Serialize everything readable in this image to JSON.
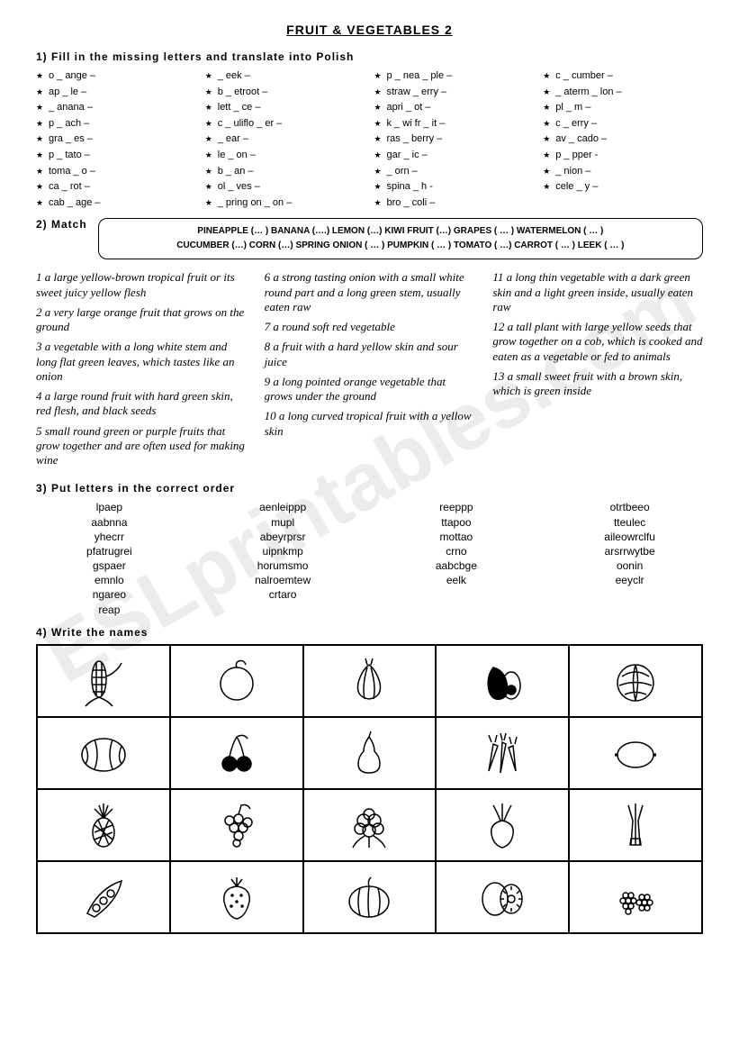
{
  "title": "FRUIT & VEGETABLES  2",
  "watermark": "ESLprintables.com",
  "ex1": {
    "heading": "1) Fill  in  the   missing   letters   and   translate   into  Polish",
    "col1": [
      "o _ ange –",
      "ap _ le –",
      "_ anana –",
      "p _ ach –",
      "gra _ es –",
      "p _ tato –",
      "toma _ o –",
      "ca _ rot –",
      "cab _ age –"
    ],
    "col2": [
      "_ eek –",
      "b _ etroot –",
      "lett _ ce –",
      "c _ uliflo _ er –",
      "_ ear –",
      "le _ on –",
      "b _ an –",
      "ol _ ves –",
      "_ pring  on _ on –"
    ],
    "col3": [
      "p _ nea _ ple –",
      "straw _ erry –",
      "apri _ ot –",
      "k _ wi  fr _ it –",
      "ras _ berry –",
      "gar _ ic –",
      "_ orn –",
      "spina _ h -",
      "bro _ coli –"
    ],
    "col4": [
      "c _ cumber –",
      "_ aterm _ lon –",
      "pl _ m –",
      "c _ erry –",
      "av _ cado –",
      "p _ pper -",
      "_ nion –",
      "cele _ y –"
    ]
  },
  "ex2": {
    "heading": "2) Match",
    "box_line1": "PINEAPPLE (… )   BANANA (….)   LEMON (…)   KIWI FRUIT (…)   GRAPES ( … ) WATERMELON ( … )",
    "box_line2": "CUCUMBER (…) CORN (…)   SPRING ONION ( … )   PUMPKIN ( … ) TOMATO ( …) CARROT ( … ) LEEK ( … )",
    "defs_col1": [
      "1 a large yellow-brown tropical fruit or its sweet juicy yellow flesh",
      "2 a very large orange fruit that grows on the ground",
      "3 a vegetable with a long white stem and long flat green leaves, which tastes like an onion",
      "4 a large round fruit with hard green skin, red flesh, and black seeds",
      "5 small round green or purple fruits that grow together and are often used for making wine"
    ],
    "defs_col2": [
      "6 a strong tasting onion with a small white round part and a long green stem, usually eaten raw",
      "7 a round soft red  vegetable",
      "8 a fruit with a hard yellow skin and sour juice",
      "9 a long pointed orange vegetable that grows under the ground",
      "10 a long curved tropical fruit with a yellow skin"
    ],
    "defs_col3": [
      "11 a long thin  vegetable with a dark green skin and a light green inside, usually eaten raw",
      "12 a tall plant with large yellow seeds that grow together on a cob, which is cooked and eaten as a vegetable or fed to animals",
      "13 a small sweet fruit with a brown skin, which is green inside"
    ]
  },
  "ex3": {
    "heading": "3) Put  letters  in  the  correct  order",
    "col1": [
      "lpaep",
      "aabnna",
      "yhecrr",
      "pfatrugrei",
      "gspaer",
      "emnlo",
      "ngareo",
      "reap"
    ],
    "col2": [
      "aenleippp",
      "mupl",
      "abeyrprsr",
      "uipnkmp",
      "horumsmo",
      "nalroemtew",
      "crtaro"
    ],
    "col3": [
      "reeppp",
      "ttapoo",
      "mottao",
      "crno",
      "aabcbge",
      "eelk"
    ],
    "col4": [
      "otrtbeeo",
      "tteulec",
      "aileowrclfu",
      "arsrrwytbe",
      "oonin",
      "eeyclr"
    ]
  },
  "ex4": {
    "heading": "4) Write the names",
    "items": [
      {
        "name": "corn-icon"
      },
      {
        "name": "orange-icon"
      },
      {
        "name": "garlic-icon"
      },
      {
        "name": "avocado-icon"
      },
      {
        "name": "cabbage-icon"
      },
      {
        "name": "watermelon-icon"
      },
      {
        "name": "cherries-icon"
      },
      {
        "name": "pear-icon"
      },
      {
        "name": "carrots-icon"
      },
      {
        "name": "lemon-icon"
      },
      {
        "name": "pineapple-icon"
      },
      {
        "name": "grapes-icon"
      },
      {
        "name": "cauliflower-icon"
      },
      {
        "name": "beetroot-icon"
      },
      {
        "name": "leek-icon"
      },
      {
        "name": "peas-icon"
      },
      {
        "name": "strawberry-icon"
      },
      {
        "name": "pumpkin-icon"
      },
      {
        "name": "kiwi-icon"
      },
      {
        "name": "raspberries-icon"
      }
    ]
  }
}
